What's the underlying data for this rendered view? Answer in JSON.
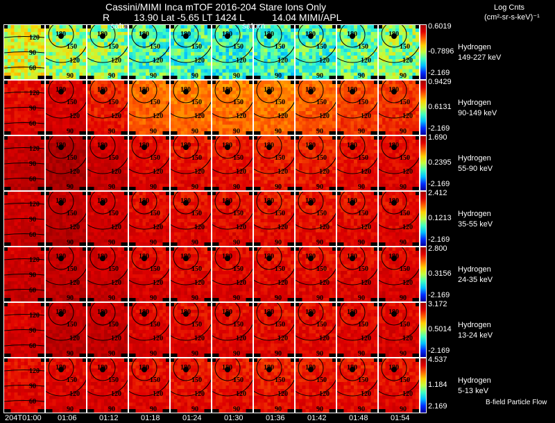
{
  "header": {
    "line1": "Cassini/MIMI Inca mTOF  2016-204    Stare    Ions Only",
    "line2_r": "R",
    "line2_rest": "13.90 Lat -5.65 LT 1424 L",
    "line2_l": "14.04  MIMI/APL",
    "planet_labels": [
      "satur",
      "saturn"
    ]
  },
  "units": {
    "line1": "Log Cnts",
    "line2": "(cm²-sr-s-keV)⁻¹"
  },
  "footer_note": "B-field Particle Flow",
  "contour_labels": {
    "pitch": [
      "180",
      "150",
      "120",
      "90"
    ],
    "first_column": [
      "120",
      "90",
      "60"
    ]
  },
  "chart_data": {
    "type": "heatmap",
    "title": "Cassini/MIMI Inca mTOF 2016-204 Stare Ions Only",
    "times": [
      "204T01:00",
      "01:06",
      "01:12",
      "01:18",
      "01:24",
      "01:30",
      "01:36",
      "01:42",
      "01:48",
      "01:54"
    ],
    "colormap": "jet",
    "rows": [
      {
        "species": "Hydrogen",
        "energy": "149-227 keV",
        "cmax": "0.6019",
        "cmid": "-0.7896",
        "cmin": "-2.169",
        "levels": [
          0.55,
          0.5,
          0.48,
          0.42,
          0.42,
          0.4,
          0.4,
          0.42,
          0.44,
          0.48
        ]
      },
      {
        "species": "Hydrogen",
        "energy": "90-149 keV",
        "cmax": "0.9429",
        "cmid": "0.6131",
        "cmin": "-2.169",
        "levels": [
          0.86,
          0.88,
          0.82,
          0.74,
          0.72,
          0.72,
          0.72,
          0.75,
          0.78,
          0.8
        ]
      },
      {
        "species": "Hydrogen",
        "energy": "55-90 keV",
        "cmax": "1.690",
        "cmid": "0.2395",
        "cmin": "-2.169",
        "levels": [
          0.92,
          0.96,
          0.9,
          0.86,
          0.84,
          0.84,
          0.82,
          0.82,
          0.84,
          0.86
        ]
      },
      {
        "species": "Hydrogen",
        "energy": "35-55 keV",
        "cmax": "2.412",
        "cmid": "0.1213",
        "cmin": "-2.169",
        "levels": [
          0.9,
          0.93,
          0.89,
          0.86,
          0.85,
          0.85,
          0.84,
          0.84,
          0.85,
          0.86
        ]
      },
      {
        "species": "Hydrogen",
        "energy": "24-35 keV",
        "cmax": "2.800",
        "cmid": "0.3156",
        "cmin": "-2.169",
        "levels": [
          0.9,
          0.92,
          0.9,
          0.87,
          0.86,
          0.86,
          0.85,
          0.85,
          0.86,
          0.87
        ]
      },
      {
        "species": "Hydrogen",
        "energy": "13-24 keV",
        "cmax": "3.172",
        "cmid": "0.5014",
        "cmin": "-2.169",
        "levels": [
          0.88,
          0.92,
          0.91,
          0.87,
          0.86,
          0.86,
          0.85,
          0.85,
          0.86,
          0.87
        ]
      },
      {
        "species": "Hydrogen",
        "energy": "5-13 keV",
        "cmax": "4.537",
        "cmid": "1.184",
        "cmin": "2.169",
        "levels": [
          0.86,
          0.87,
          0.87,
          0.85,
          0.84,
          0.84,
          0.83,
          0.84,
          0.84,
          0.85
        ]
      }
    ]
  }
}
